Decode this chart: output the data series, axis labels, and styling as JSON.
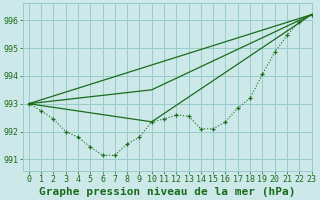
{
  "background_color": "#cce8e8",
  "grid_color": "#99cccc",
  "line_color": "#1a6b1a",
  "title": "Graphe pression niveau de la mer (hPa)",
  "xlim": [
    -0.5,
    23
  ],
  "ylim": [
    990.6,
    996.6
  ],
  "yticks": [
    991,
    992,
    993,
    994,
    995,
    996
  ],
  "xticks": [
    0,
    1,
    2,
    3,
    4,
    5,
    6,
    7,
    8,
    9,
    10,
    11,
    12,
    13,
    14,
    15,
    16,
    17,
    18,
    19,
    20,
    21,
    22,
    23
  ],
  "dotted_x": [
    0,
    1,
    2,
    3,
    4,
    5,
    6,
    7,
    8,
    9,
    10,
    11,
    12,
    13,
    14,
    15,
    16,
    17,
    18,
    19,
    20,
    21,
    22,
    23
  ],
  "dotted_y": [
    993.0,
    992.75,
    992.45,
    992.0,
    991.8,
    991.45,
    991.15,
    991.15,
    991.55,
    991.8,
    992.35,
    992.45,
    992.6,
    992.55,
    992.1,
    992.1,
    992.35,
    992.85,
    993.2,
    994.05,
    994.85,
    995.45,
    995.95,
    996.2
  ],
  "line1_x": [
    0,
    10,
    23
  ],
  "line1_y": [
    993.0,
    993.5,
    996.2
  ],
  "line2_x": [
    0,
    23
  ],
  "line2_y": [
    993.0,
    996.2
  ],
  "line3_x": [
    0,
    10,
    23
  ],
  "line3_y": [
    993.0,
    992.35,
    996.2
  ],
  "title_fontsize": 8,
  "tick_fontsize": 6,
  "title_fontweight": "bold"
}
